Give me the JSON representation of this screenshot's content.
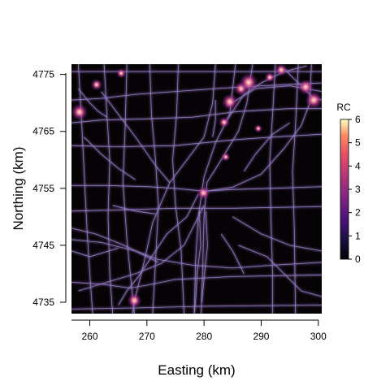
{
  "chart_data": {
    "type": "heatmap",
    "title": "",
    "xlabel": "Easting (km)",
    "ylabel": "Northing (km)",
    "xlim": [
      256.8,
      300.6
    ],
    "ylim": [
      4733.0,
      4776.8
    ],
    "x_ticks": [
      260,
      270,
      280,
      290,
      300
    ],
    "y_ticks": [
      4735,
      4745,
      4755,
      4765,
      4775
    ],
    "legend": {
      "title": "RC",
      "min": 0,
      "max": 6,
      "ticks": [
        0,
        1,
        2,
        3,
        4,
        5,
        6
      ],
      "placement": "right"
    },
    "colors": {
      "background": "#060307",
      "road_low": "#8a86c8",
      "road_mid": "#b07ad0",
      "hotspot": "#ff6f9e",
      "hotspot_core": "#fff0c8"
    },
    "roads": [
      [
        [
          256.8,
          4775.5
        ],
        [
          300.6,
          4775.5
        ]
      ],
      [
        [
          256.8,
          4770.5
        ],
        [
          262,
          4770.8
        ],
        [
          268,
          4771.5
        ],
        [
          275,
          4772
        ],
        [
          282,
          4772.5
        ],
        [
          290,
          4773
        ],
        [
          300.6,
          4773.5
        ]
      ],
      [
        [
          256.8,
          4766.5
        ],
        [
          262,
          4767
        ],
        [
          270,
          4767.2
        ],
        [
          278,
          4767.5
        ],
        [
          286,
          4768.5
        ],
        [
          295,
          4769
        ],
        [
          300.6,
          4769
        ]
      ],
      [
        [
          256.8,
          4762.5
        ],
        [
          265,
          4762.3
        ],
        [
          275,
          4762.5
        ],
        [
          285,
          4763.5
        ],
        [
          292,
          4764
        ],
        [
          300.6,
          4764.5
        ]
      ],
      [
        [
          256.8,
          4755.5
        ],
        [
          263,
          4755.5
        ],
        [
          270,
          4755.3
        ],
        [
          275,
          4755
        ],
        [
          280,
          4754.5
        ],
        [
          285,
          4754.8
        ],
        [
          292,
          4755
        ],
        [
          300.6,
          4755.3
        ]
      ],
      [
        [
          256.8,
          4751
        ],
        [
          265,
          4751.2
        ],
        [
          275,
          4751.5
        ],
        [
          285,
          4751.5
        ],
        [
          300.6,
          4751.8
        ]
      ],
      [
        [
          256.8,
          4746
        ],
        [
          262,
          4745.5
        ],
        [
          268,
          4744
        ],
        [
          272,
          4742.5
        ],
        [
          278,
          4741.5
        ],
        [
          285,
          4741
        ],
        [
          292,
          4741.5
        ],
        [
          300.6,
          4742
        ]
      ],
      [
        [
          256.8,
          4738.5
        ],
        [
          262,
          4738.2
        ],
        [
          267,
          4737.5
        ],
        [
          270,
          4738
        ],
        [
          275,
          4739
        ],
        [
          285,
          4739.5
        ],
        [
          300.6,
          4739.8
        ]
      ],
      [
        [
          256.8,
          4733.8
        ],
        [
          268,
          4734
        ],
        [
          280,
          4734.3
        ],
        [
          300.6,
          4734.5
        ]
      ],
      [
        [
          270.5,
          4776.8
        ],
        [
          270.8,
          4768
        ],
        [
          271.5,
          4760
        ],
        [
          272,
          4752
        ],
        [
          271.5,
          4742
        ],
        [
          271,
          4733
        ]
      ],
      [
        [
          285.5,
          4776.8
        ],
        [
          284.5,
          4768
        ],
        [
          282,
          4763
        ],
        [
          280,
          4757
        ],
        [
          279,
          4750
        ],
        [
          278.5,
          4742
        ],
        [
          278.3,
          4733
        ]
      ],
      [
        [
          288.5,
          4776.8
        ],
        [
          287.5,
          4770
        ],
        [
          286,
          4765
        ],
        [
          283,
          4760
        ],
        [
          280.5,
          4756
        ],
        [
          280,
          4750
        ],
        [
          279.8,
          4742
        ],
        [
          279.5,
          4733
        ]
      ],
      [
        [
          292.5,
          4776.8
        ],
        [
          292,
          4768
        ],
        [
          291.5,
          4760
        ],
        [
          291.7,
          4750
        ],
        [
          292,
          4740
        ],
        [
          292,
          4733
        ]
      ],
      [
        [
          296.5,
          4776.8
        ],
        [
          296,
          4766
        ],
        [
          295.5,
          4758
        ],
        [
          295.8,
          4748
        ],
        [
          296,
          4733
        ]
      ],
      [
        [
          262.5,
          4776.8
        ],
        [
          263,
          4768
        ],
        [
          263.5,
          4760
        ],
        [
          263.2,
          4750
        ],
        [
          263.5,
          4740
        ],
        [
          264,
          4733
        ]
      ],
      [
        [
          266.5,
          4776.8
        ],
        [
          266.2,
          4766
        ],
        [
          265.8,
          4756
        ],
        [
          266.5,
          4746
        ],
        [
          267.5,
          4736
        ],
        [
          267.8,
          4733
        ]
      ],
      [
        [
          258,
          4776.8
        ],
        [
          258.5,
          4768
        ],
        [
          259,
          4758
        ],
        [
          259.5,
          4748
        ],
        [
          260,
          4740
        ],
        [
          260.5,
          4733
        ]
      ],
      [
        [
          275.5,
          4776.8
        ],
        [
          275.2,
          4768
        ],
        [
          274.5,
          4760
        ],
        [
          275,
          4752
        ],
        [
          276,
          4744
        ],
        [
          276.5,
          4733
        ]
      ],
      [
        [
          298.8,
          4776.8
        ],
        [
          298.5,
          4770
        ],
        [
          297,
          4766
        ],
        [
          294,
          4762
        ],
        [
          290,
          4757.5
        ],
        [
          285,
          4755.2
        ],
        [
          280.5,
          4754.5
        ]
      ],
      [
        [
          282,
          4776.8
        ],
        [
          281.5,
          4770
        ],
        [
          280,
          4764
        ],
        [
          277,
          4760
        ],
        [
          274,
          4756
        ],
        [
          271,
          4749
        ],
        [
          269.5,
          4742
        ],
        [
          268,
          4736
        ],
        [
          267.5,
          4733
        ]
      ],
      [
        [
          262,
          4772
        ],
        [
          265,
          4768
        ],
        [
          268,
          4764
        ],
        [
          271.5,
          4759
        ],
        [
          274,
          4756
        ]
      ],
      [
        [
          258,
          4772.5
        ],
        [
          260,
          4770
        ],
        [
          261.5,
          4768.5
        ],
        [
          263,
          4767.5
        ]
      ],
      [
        [
          279,
          4754
        ],
        [
          277,
          4750
        ],
        [
          273.5,
          4747
        ],
        [
          270.5,
          4742.5
        ],
        [
          268.5,
          4739.5
        ],
        [
          266.5,
          4737
        ],
        [
          265,
          4734.5
        ]
      ],
      [
        [
          280,
          4752
        ],
        [
          276.5,
          4745
        ],
        [
          272.5,
          4741.8
        ],
        [
          268,
          4740
        ],
        [
          263,
          4738.5
        ],
        [
          258,
          4737
        ]
      ],
      [
        [
          279.2,
          4751
        ],
        [
          279.4,
          4745
        ],
        [
          278.8,
          4740
        ],
        [
          278.5,
          4735
        ],
        [
          278.3,
          4733.2
        ]
      ],
      [
        [
          280.3,
          4751
        ],
        [
          280.6,
          4745
        ],
        [
          280.1,
          4740
        ],
        [
          279.6,
          4735
        ]
      ],
      [
        [
          272,
          4742
        ],
        [
          266,
          4745
        ],
        [
          261,
          4747
        ],
        [
          256.8,
          4748
        ]
      ],
      [
        [
          284,
          4767
        ],
        [
          287,
          4771.5
        ],
        [
          290,
          4773.5
        ],
        [
          294,
          4775.5
        ],
        [
          298,
          4776.5
        ]
      ],
      [
        [
          284,
          4769.5
        ],
        [
          289,
          4772.5
        ],
        [
          295,
          4773
        ],
        [
          300.6,
          4772
        ]
      ],
      [
        [
          294,
          4776
        ],
        [
          297,
          4773
        ],
        [
          299,
          4771
        ],
        [
          300.6,
          4770.5
        ]
      ],
      [
        [
          256.8,
          4744
        ],
        [
          260,
          4743
        ],
        [
          265,
          4744.5
        ]
      ],
      [
        [
          285,
          4750
        ],
        [
          290,
          4747
        ],
        [
          295,
          4745
        ],
        [
          300.6,
          4744
        ]
      ],
      [
        [
          286,
          4745
        ],
        [
          291,
          4743
        ],
        [
          297,
          4737
        ],
        [
          300.6,
          4736
        ]
      ],
      [
        [
          282,
          4770.5
        ],
        [
          282,
          4767
        ],
        [
          281.5,
          4764
        ]
      ],
      [
        [
          259,
          4764
        ],
        [
          262,
          4761
        ],
        [
          265,
          4758.5
        ],
        [
          268,
          4756.5
        ]
      ],
      [
        [
          287,
          4758
        ],
        [
          289,
          4761
        ],
        [
          292,
          4764.5
        ],
        [
          295,
          4766.5
        ]
      ],
      [
        [
          264,
          4752
        ],
        [
          268,
          4751
        ],
        [
          271.5,
          4750.5
        ]
      ],
      [
        [
          283,
          4747
        ],
        [
          285,
          4744
        ],
        [
          287,
          4740
        ]
      ]
    ],
    "hotspots": [
      [
        258.2,
        4768.4,
        4.6
      ],
      [
        261.2,
        4773.2,
        2.6
      ],
      [
        267.8,
        4735.3,
        3.8
      ],
      [
        279.9,
        4754.2,
        3.2
      ],
      [
        283.5,
        4766.6,
        2.4
      ],
      [
        284.5,
        4770.2,
        4.4
      ],
      [
        286.5,
        4772.5,
        3.6
      ],
      [
        287.8,
        4773.6,
        5.4
      ],
      [
        291.5,
        4774.5,
        2.2
      ],
      [
        293.5,
        4775.8,
        3.0
      ],
      [
        297.8,
        4772.8,
        4.2
      ],
      [
        299.2,
        4770.5,
        4.8
      ],
      [
        265.5,
        4775.2,
        2.0
      ],
      [
        283.8,
        4760.5,
        1.6
      ],
      [
        289.5,
        4765.5,
        1.4
      ]
    ]
  }
}
